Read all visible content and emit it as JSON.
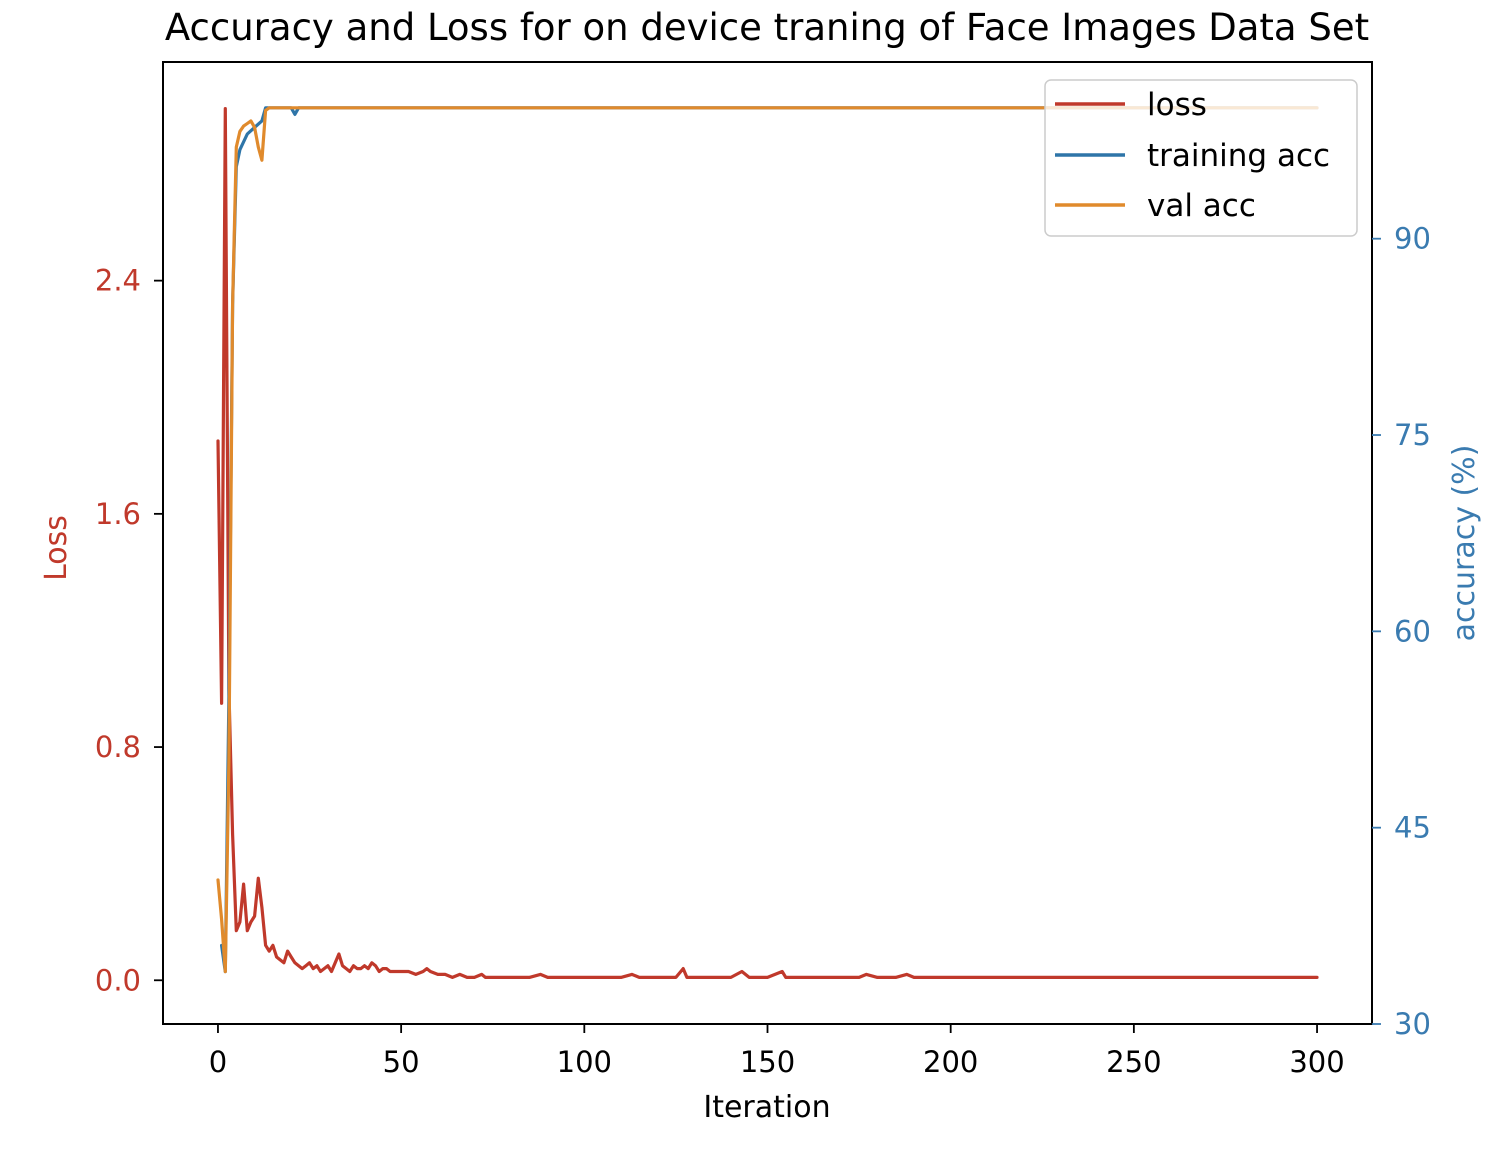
{
  "chart_data": {
    "type": "line",
    "title": "Accuracy and Loss for on device traning of Face Images Data Set",
    "xlabel": "Iteration",
    "ylabel_left": "Loss",
    "ylabel_right": "accuracy (%)",
    "xlim": [
      -15,
      315
    ],
    "ylim_left": [
      -0.15,
      3.15
    ],
    "ylim_right": [
      30,
      103.5
    ],
    "xticks": [
      0,
      50,
      100,
      150,
      200,
      250,
      300
    ],
    "yticks_left": [
      0.0,
      0.8,
      1.6,
      2.4
    ],
    "yticks_left_labels": [
      "0.0",
      "0.8",
      "1.6",
      "2.4"
    ],
    "yticks_right": [
      30,
      45,
      60,
      75,
      90
    ],
    "legend_position": "upper right",
    "colors": {
      "loss": "#c0392b",
      "training_acc": "#2e75a8",
      "val_acc": "#e08a2c",
      "left_axis": "#c0392b",
      "right_axis": "#3a7bb0"
    },
    "series": [
      {
        "name": "loss",
        "axis": "left",
        "x": [
          0,
          1,
          2,
          3,
          4,
          5,
          6,
          7,
          8,
          9,
          10,
          11,
          12,
          13,
          14,
          15,
          16,
          17,
          18,
          19,
          20,
          21,
          22,
          23,
          24,
          25,
          26,
          27,
          28,
          29,
          30,
          31,
          32,
          33,
          34,
          35,
          36,
          37,
          38,
          39,
          40,
          41,
          42,
          43,
          44,
          45,
          46,
          47,
          48,
          50,
          52,
          54,
          56,
          57,
          58,
          60,
          62,
          64,
          66,
          68,
          70,
          72,
          73,
          75,
          80,
          85,
          88,
          90,
          95,
          100,
          105,
          110,
          113,
          115,
          120,
          125,
          127,
          128,
          130,
          135,
          140,
          143,
          145,
          150,
          154,
          155,
          160,
          165,
          170,
          175,
          177,
          180,
          185,
          188,
          190,
          195,
          200,
          205,
          210,
          215,
          220,
          225,
          230,
          235,
          240,
          245,
          250,
          255,
          260,
          265,
          270,
          275,
          280,
          285,
          290,
          295,
          300
        ],
        "values": [
          1.85,
          0.95,
          2.99,
          1.0,
          0.5,
          0.17,
          0.2,
          0.33,
          0.17,
          0.2,
          0.22,
          0.35,
          0.25,
          0.12,
          0.1,
          0.12,
          0.08,
          0.07,
          0.06,
          0.1,
          0.08,
          0.06,
          0.05,
          0.04,
          0.05,
          0.06,
          0.04,
          0.05,
          0.03,
          0.04,
          0.05,
          0.03,
          0.06,
          0.09,
          0.05,
          0.04,
          0.03,
          0.05,
          0.04,
          0.04,
          0.05,
          0.04,
          0.06,
          0.05,
          0.03,
          0.04,
          0.04,
          0.03,
          0.03,
          0.03,
          0.03,
          0.02,
          0.03,
          0.04,
          0.03,
          0.02,
          0.02,
          0.01,
          0.02,
          0.01,
          0.01,
          0.02,
          0.01,
          0.01,
          0.01,
          0.01,
          0.02,
          0.01,
          0.01,
          0.01,
          0.01,
          0.01,
          0.02,
          0.01,
          0.01,
          0.01,
          0.04,
          0.01,
          0.01,
          0.01,
          0.01,
          0.03,
          0.01,
          0.01,
          0.03,
          0.01,
          0.01,
          0.01,
          0.01,
          0.01,
          0.02,
          0.01,
          0.01,
          0.02,
          0.01,
          0.01,
          0.01,
          0.01,
          0.01,
          0.01,
          0.01,
          0.01,
          0.01,
          0.01,
          0.01,
          0.01,
          0.01,
          0.01,
          0.01,
          0.01,
          0.01,
          0.01,
          0.01,
          0.01,
          0.01,
          0.01,
          0.01
        ]
      },
      {
        "name": "training acc",
        "axis": "right",
        "x": [
          1,
          2,
          3,
          4,
          5,
          6,
          8,
          10,
          12,
          13,
          15,
          20,
          21,
          22,
          25,
          300
        ],
        "values": [
          36,
          34,
          55,
          85,
          95.5,
          96.8,
          98.0,
          98.5,
          99.0,
          100,
          100,
          100,
          99.5,
          100,
          100,
          100
        ]
      },
      {
        "name": "val acc",
        "axis": "right",
        "x": [
          0,
          1,
          2,
          3,
          4,
          5,
          6,
          7,
          8,
          9,
          10,
          11,
          12,
          13,
          14,
          15,
          20,
          25,
          300
        ],
        "values": [
          41,
          38,
          34,
          50,
          85,
          97,
          98.2,
          98.6,
          98.8,
          99.0,
          98.5,
          97.0,
          96.0,
          99.8,
          100,
          100,
          100,
          100,
          100
        ]
      }
    ]
  }
}
